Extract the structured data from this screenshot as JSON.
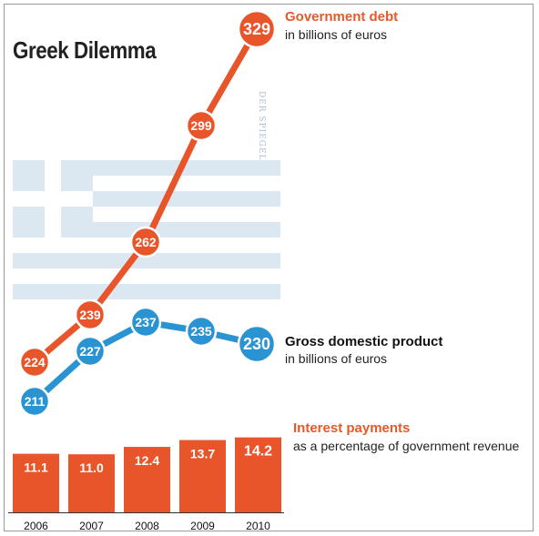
{
  "title": "Greek Dilemma",
  "watermark": "DER SPIEGEL",
  "colors": {
    "debt": "#e8552b",
    "gdp": "#2a93d1",
    "bars": "#e8552b",
    "flag": "#dbe7f1"
  },
  "labels": {
    "debt_title": "Government debt",
    "debt_sub": "in billions of euros",
    "gdp_title": "Gross domestic product",
    "gdp_sub": "in billions of euros",
    "interest_title": "Interest payments",
    "interest_sub": "as a percentage of government revenue"
  },
  "chart_data": [
    {
      "type": "line",
      "title": "Greek Dilemma",
      "x": [
        2006,
        2007,
        2008,
        2009,
        2010
      ],
      "series": [
        {
          "name": "Government debt",
          "values": [
            224,
            239,
            262,
            299,
            329
          ]
        },
        {
          "name": "Gross domestic product",
          "values": [
            211,
            227,
            237,
            235,
            230
          ]
        }
      ]
    },
    {
      "type": "bar",
      "categories": [
        "2006",
        "2007",
        "2008",
        "2009",
        "2010"
      ],
      "series": [
        {
          "name": "Interest payments",
          "values": [
            11.1,
            11.0,
            12.4,
            13.7,
            14.2
          ]
        }
      ]
    }
  ]
}
